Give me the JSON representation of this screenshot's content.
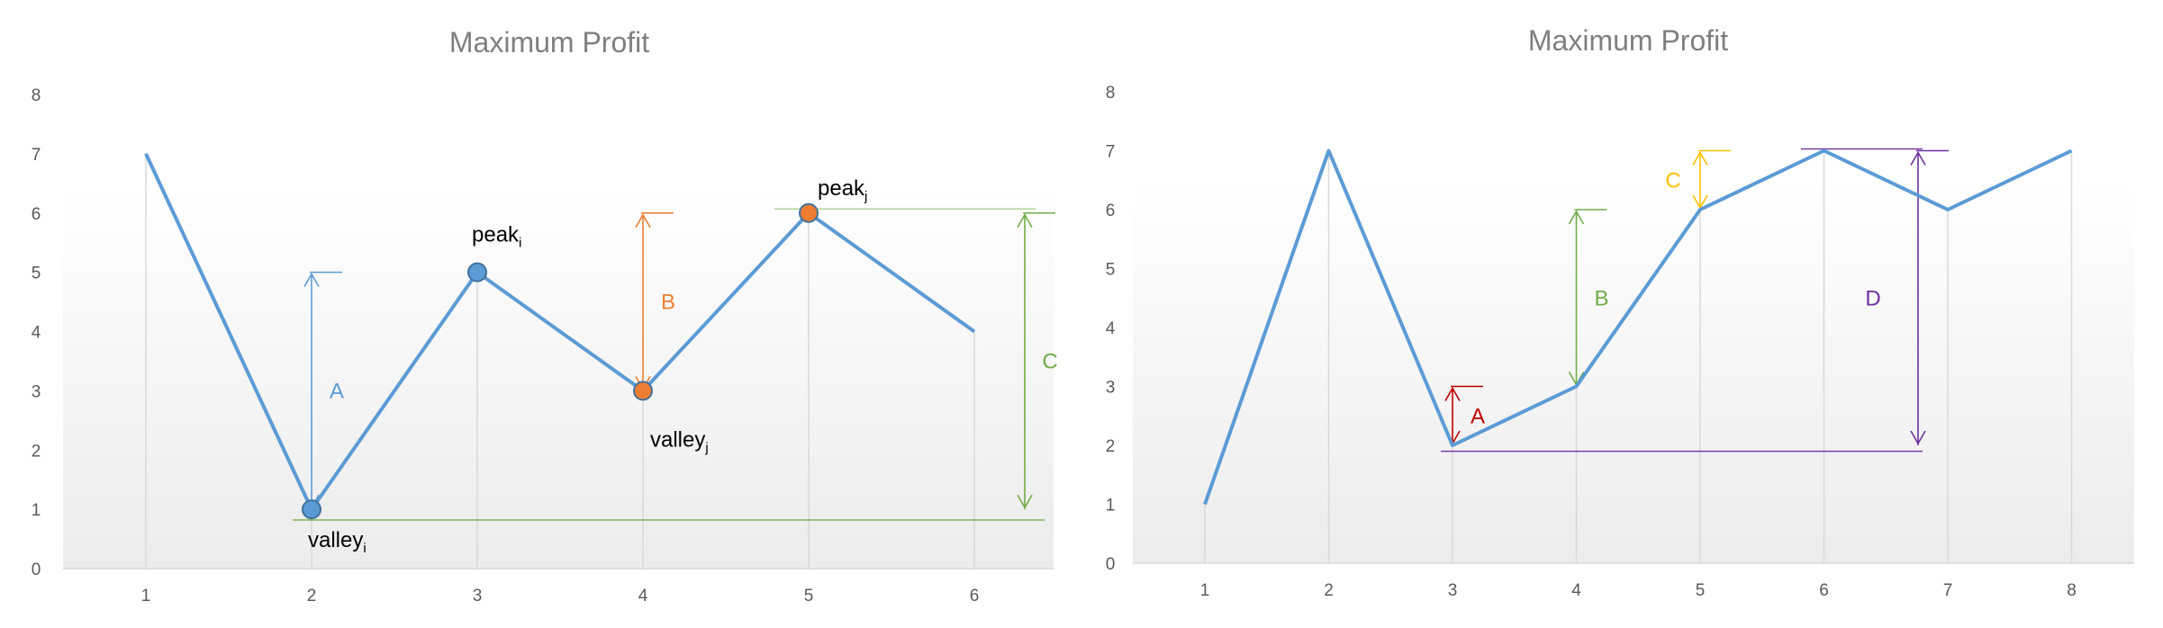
{
  "chart_data": [
    {
      "type": "line",
      "title": "Maximum Profit",
      "xlabel": "",
      "ylabel": "",
      "x": [
        1,
        2,
        3,
        4,
        5,
        6
      ],
      "series": [
        {
          "values": [
            7,
            1,
            5,
            3,
            6,
            4
          ],
          "color": "#5b9bd5"
        }
      ],
      "ylim": [
        0,
        8
      ],
      "yticks": [
        0,
        1,
        2,
        3,
        4,
        5,
        6,
        7,
        8
      ],
      "grid": "vertical",
      "marked_points": [
        {
          "x": 2,
          "y": 1,
          "label": "valley",
          "sub": "i",
          "color": "#5b9bd5"
        },
        {
          "x": 3,
          "y": 5,
          "label": "peak",
          "sub": "i",
          "color": "#5b9bd5"
        },
        {
          "x": 4,
          "y": 3,
          "label": "valley",
          "sub": "j",
          "color": "#ed7d31"
        },
        {
          "x": 5,
          "y": 6,
          "label": "peak",
          "sub": "j",
          "color": "#ed7d31"
        }
      ],
      "annotations": [
        {
          "label": "A",
          "x": 2,
          "from": 1,
          "to": 5,
          "color": "#5b9bd5"
        },
        {
          "label": "B",
          "x": 4,
          "from": 3,
          "to": 6,
          "color": "#ed7d31"
        },
        {
          "label": "C",
          "x": 6.25,
          "from": 1,
          "to": 6,
          "color": "#70ad47"
        }
      ]
    },
    {
      "type": "line",
      "title": "Maximum Profit",
      "xlabel": "",
      "ylabel": "",
      "x": [
        1,
        2,
        3,
        4,
        5,
        6,
        7,
        8
      ],
      "series": [
        {
          "values": [
            1,
            7,
            2,
            3,
            6,
            7,
            6,
            7
          ],
          "color": "#5b9bd5"
        }
      ],
      "ylim": [
        0,
        8
      ],
      "yticks": [
        0,
        1,
        2,
        3,
        4,
        5,
        6,
        7,
        8
      ],
      "grid": "vertical",
      "annotations": [
        {
          "label": "A",
          "x": 3,
          "from": 2,
          "to": 3,
          "color": "#c00000"
        },
        {
          "label": "B",
          "x": 4,
          "from": 3,
          "to": 6,
          "color": "#70ad47"
        },
        {
          "label": "C",
          "x": 5,
          "from": 6,
          "to": 7,
          "color": "#ffc000"
        },
        {
          "label": "D",
          "x": 6.7,
          "from": 2,
          "to": 7,
          "color": "#7030a0"
        }
      ]
    }
  ]
}
